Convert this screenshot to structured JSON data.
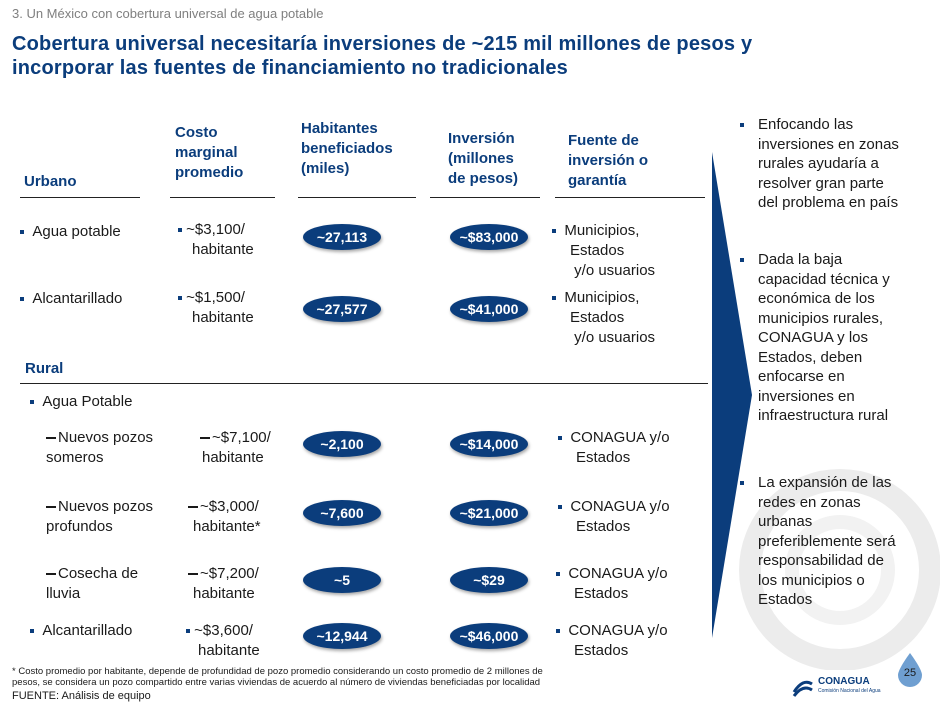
{
  "header": {
    "section": "3. Un México con cobertura universal de agua potable",
    "title_line1": "Cobertura universal necesitaría inversiones de ~215 mil millones de pesos y",
    "title_line2": "incorporar las fuentes de financiamiento no tradicionales"
  },
  "columns": {
    "urbano": "Urbano",
    "costo": [
      "Costo",
      "marginal",
      "promedio"
    ],
    "habitantes": [
      "Habitantes",
      "beneficiados",
      "(miles)"
    ],
    "inversion": [
      "Inversión",
      "(millones",
      "de pesos)"
    ],
    "fuente": [
      "Fuente de",
      "inversión o",
      "garantía"
    ]
  },
  "urbano_rows": [
    {
      "label": "Agua potable",
      "cost": [
        "~$3,100/",
        "habitante"
      ],
      "hab": "~27,113",
      "inv": "~$83,000",
      "source": [
        "Municipios,",
        "Estados",
        " y/o usuarios"
      ]
    },
    {
      "label": "Alcantarillado",
      "cost": [
        "~$1,500/",
        "habitante"
      ],
      "hab": "~27,577",
      "inv": "~$41,000",
      "source": [
        "Municipios,",
        "Estados",
        " y/o usuarios"
      ]
    }
  ],
  "rural": {
    "label": "Rural",
    "agua_label": "Agua Potable",
    "rows": [
      {
        "label": [
          "Nuevos pozos",
          "someros"
        ],
        "cost": [
          "~$7,100/",
          "habitante"
        ],
        "hab": "~2,100",
        "inv": "~$14,000",
        "source": [
          "CONAGUA y/o",
          "Estados"
        ]
      },
      {
        "label": [
          "Nuevos pozos",
          "profundos"
        ],
        "cost": [
          "~$3,000/",
          "habitante*"
        ],
        "hab": "~7,600",
        "inv": "~$21,000",
        "source": [
          "CONAGUA y/o",
          "Estados"
        ]
      },
      {
        "label": [
          "Cosecha de",
          "lluvia"
        ],
        "cost": [
          "~$7,200/",
          "habitante"
        ],
        "hab": "~5",
        "inv": "~$29",
        "source": [
          "CONAGUA y/o",
          "Estados"
        ]
      }
    ],
    "alcantarillado": {
      "label": "Alcantarillado",
      "cost": [
        "~$3,600/",
        "habitante"
      ],
      "hab": "~12,944",
      "inv": "~$46,000",
      "source": [
        "CONAGUA y/o",
        "Estados"
      ]
    }
  },
  "insights": [
    [
      "Enfocando las",
      "inversiones en zonas",
      "rurales ayudaría a",
      "resolver gran parte",
      "del problema en país"
    ],
    [
      "Dada la baja",
      "capacidad técnica y",
      "económica de los",
      "municipios rurales,",
      "CONAGUA y los",
      "Estados, deben",
      "enfocarse en",
      "inversiones en",
      "infraestructura rural"
    ],
    [
      "La expansión de las",
      "redes en zonas",
      "urbanas",
      "preferiblemente será",
      "responsabilidad de",
      "los municipios o",
      "Estados"
    ]
  ],
  "footer": {
    "note_line1": "* Costo promedio por habitante, depende de profundidad de pozo promedio considerando un costo promedio de 2 millones de",
    "note_line2": "pesos, se considera un pozo compartido entre varias viviendas de acuerdo al número de viviendas beneficiadas por localidad",
    "source": "FUENTE:  Análisis de equipo",
    "page": "25",
    "logo": "CONAGUA",
    "logo_sub": "Comisión Nacional del Agua"
  },
  "colors": {
    "navy": "#0b3d7c",
    "text": "#1a1a1a",
    "grey": "#7f7f7f"
  }
}
